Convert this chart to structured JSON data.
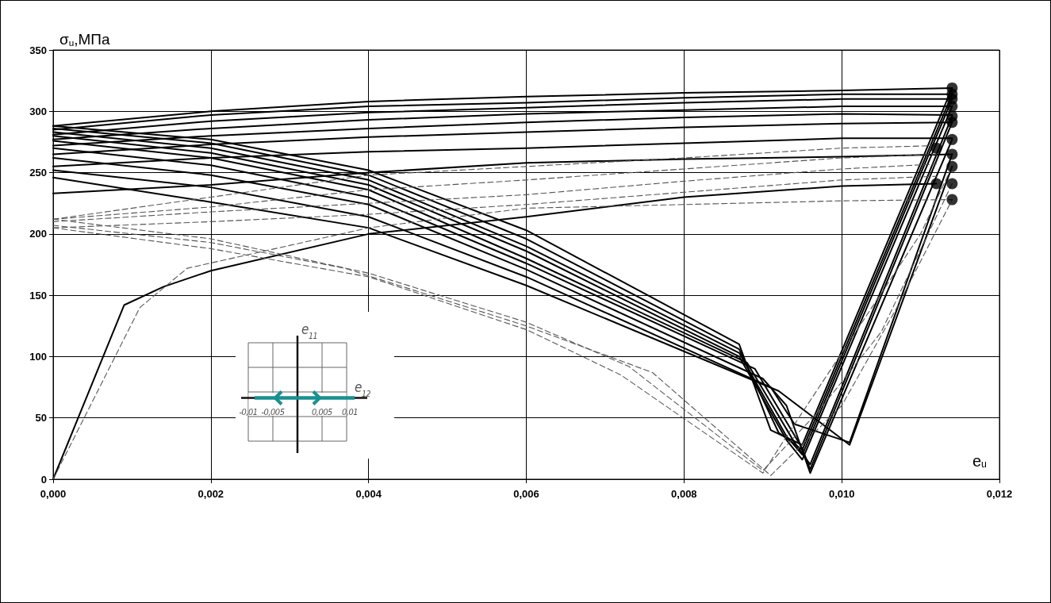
{
  "chart_data": {
    "type": "line",
    "xlabel": "e$_{u}$",
    "ylabel": "σ$_{u}$,МПа",
    "xlim": [
      0,
      0.012
    ],
    "ylim": [
      0,
      350
    ],
    "xticks": [
      {
        "value": 0,
        "label": "0,000"
      },
      {
        "value": 0.002,
        "label": "0,002"
      },
      {
        "value": 0.004,
        "label": "0,004"
      },
      {
        "value": 0.006,
        "label": "0,006"
      },
      {
        "value": 0.008,
        "label": "0,008"
      },
      {
        "value": 0.01,
        "label": "0,010"
      },
      {
        "value": 0.012,
        "label": "0,012"
      }
    ],
    "yticks": [
      0,
      50,
      100,
      150,
      200,
      250,
      300,
      350
    ],
    "grid": true,
    "marker": "none",
    "line_style": "solid",
    "annotations": [
      "e$_{11}$",
      "e$_{12}$",
      "-0,01",
      "-0,005",
      "0,005",
      "0,01"
    ],
    "series": [
      {
        "color": "#000000",
        "x": [
          0,
          0.0009,
          0.0014,
          0.002,
          0.004,
          0.006,
          0.008,
          0.01,
          0.0112
        ],
        "values": [
          0,
          142,
          157,
          170,
          200,
          214,
          230,
          239,
          241
        ]
      },
      {
        "color": "#000000",
        "x": [
          0,
          0.002,
          0.004,
          0.006,
          0.008,
          0.01,
          0.0114
        ],
        "values": [
          288,
          300,
          308,
          312,
          315,
          317,
          319
        ]
      },
      {
        "color": "#000000",
        "x": [
          0,
          0.002,
          0.004,
          0.006,
          0.008,
          0.01,
          0.0114
        ],
        "values": [
          285,
          297,
          304,
          307,
          311,
          314,
          314
        ]
      },
      {
        "color": "#000000",
        "x": [
          0,
          0.002,
          0.004,
          0.006,
          0.008,
          0.01,
          0.0114
        ],
        "values": [
          281,
          292,
          299,
          303,
          307,
          310,
          310
        ]
      },
      {
        "color": "#000000",
        "x": [
          0,
          0.002,
          0.004,
          0.006,
          0.008,
          0.01,
          0.0114
        ],
        "values": [
          277,
          286,
          293,
          298,
          301,
          304,
          304
        ]
      },
      {
        "color": "#000000",
        "x": [
          0,
          0.002,
          0.004,
          0.006,
          0.008,
          0.01,
          0.0114
        ],
        "values": [
          272,
          280,
          286,
          291,
          295,
          298,
          297
        ]
      },
      {
        "color": "#000000",
        "x": [
          0,
          0.002,
          0.004,
          0.006,
          0.008,
          0.01,
          0.0114
        ],
        "values": [
          265,
          273,
          279,
          283,
          287,
          290,
          291
        ]
      },
      {
        "color": "#000000",
        "x": [
          0,
          0.002,
          0.004,
          0.006,
          0.008,
          0.01,
          0.0114
        ],
        "values": [
          255,
          262,
          267,
          270,
          274,
          278,
          278
        ]
      },
      {
        "color": "#000000",
        "x": [
          0,
          0.002,
          0.004,
          0.006,
          0.008,
          0.01,
          0.0114
        ],
        "values": [
          233,
          240,
          250,
          258,
          261,
          263,
          265
        ]
      },
      {
        "color": "#000000",
        "x": [
          0,
          0.002,
          0.004,
          0.006,
          0.0087,
          0.0091,
          0.0095,
          0.0114
        ],
        "values": [
          288,
          277,
          252,
          203,
          110,
          40,
          28,
          319
        ]
      },
      {
        "color": "#000000",
        "x": [
          0,
          0.002,
          0.004,
          0.006,
          0.0087,
          0.0092,
          0.0095,
          0.0114
        ],
        "values": [
          286,
          274,
          248,
          196,
          106,
          38,
          24,
          314
        ]
      },
      {
        "color": "#000000",
        "x": [
          0,
          0.002,
          0.004,
          0.006,
          0.0087,
          0.0093,
          0.0095,
          0.0114
        ],
        "values": [
          283,
          270,
          244,
          190,
          103,
          35,
          20,
          310
        ]
      },
      {
        "color": "#000000",
        "x": [
          0,
          0.002,
          0.004,
          0.006,
          0.0087,
          0.0093,
          0.0095,
          0.0114
        ],
        "values": [
          280,
          266,
          240,
          186,
          100,
          32,
          16,
          304
        ]
      },
      {
        "color": "#000000",
        "x": [
          0,
          0.002,
          0.004,
          0.006,
          0.0088,
          0.0094,
          0.0096,
          0.0114
        ],
        "values": [
          276,
          262,
          236,
          180,
          95,
          30,
          12,
          296
        ]
      },
      {
        "color": "#000000",
        "x": [
          0,
          0.002,
          0.004,
          0.006,
          0.0089,
          0.0095,
          0.0096,
          0.0114
        ],
        "values": [
          270,
          256,
          230,
          176,
          90,
          25,
          8,
          291
        ]
      },
      {
        "color": "#000000",
        "x": [
          0,
          0.002,
          0.004,
          0.006,
          0.009,
          0.0093,
          0.0096,
          0.0114
        ],
        "values": [
          262,
          248,
          224,
          171,
          82,
          60,
          5,
          277
        ]
      },
      {
        "color": "#000000",
        "x": [
          0,
          0.002,
          0.004,
          0.006,
          0.0091,
          0.0094,
          0.0101,
          0.0114
        ],
        "values": [
          252,
          238,
          214,
          165,
          75,
          45,
          30,
          265
        ]
      },
      {
        "color": "#000000",
        "x": [
          0,
          0.002,
          0.004,
          0.006,
          0.0092,
          0.0101,
          0.0114
        ],
        "values": [
          246,
          226,
          205,
          158,
          72,
          28,
          255
        ]
      },
      {
        "color": "#555555",
        "line_style": "dashed",
        "x": [
          0,
          0.0011,
          0.0017,
          0.004,
          0.006,
          0.01,
          0.0114
        ],
        "values": [
          0,
          140,
          172,
          205,
          221,
          227,
          228
        ]
      },
      {
        "color": "#555555",
        "line_style": "dashed",
        "x": [
          0,
          0.002,
          0.004,
          0.006,
          0.008,
          0.01,
          0.0112
        ],
        "values": [
          212,
          230,
          248,
          255,
          262,
          270,
          272
        ]
      },
      {
        "color": "#555555",
        "line_style": "dashed",
        "x": [
          0,
          0.002,
          0.004,
          0.006,
          0.008,
          0.01,
          0.0112
        ],
        "values": [
          212,
          222,
          236,
          244,
          253,
          262,
          265
        ]
      },
      {
        "color": "#555555",
        "line_style": "dashed",
        "x": [
          0,
          0.002,
          0.004,
          0.006,
          0.008,
          0.01,
          0.0112
        ],
        "values": [
          210,
          218,
          225,
          232,
          243,
          253,
          257
        ]
      },
      {
        "color": "#555555",
        "line_style": "dashed",
        "x": [
          0,
          0.002,
          0.004,
          0.006,
          0.008,
          0.01,
          0.0112
        ],
        "values": [
          205,
          210,
          216,
          224,
          234,
          244,
          247
        ]
      },
      {
        "color": "#555555",
        "line_style": "dashed",
        "x": [
          0,
          0.002,
          0.004,
          0.006,
          0.0073,
          0.009,
          0.0097,
          0.0105,
          0.0114
        ],
        "values": [
          212,
          196,
          168,
          128,
          92,
          7,
          55,
          120,
          241
        ]
      },
      {
        "color": "#555555",
        "line_style": "dashed",
        "x": [
          0,
          0.002,
          0.0037,
          0.006,
          0.0076,
          0.0091,
          0.01,
          0.0107,
          0.0114
        ],
        "values": [
          207,
          193,
          172,
          125,
          87,
          3,
          60,
          140,
          228
        ]
      },
      {
        "color": "#555555",
        "line_style": "dashed",
        "x": [
          0,
          0.002,
          0.004,
          0.006,
          0.0072,
          0.009,
          0.0093,
          0.011,
          0.0114
        ],
        "values": [
          205,
          188,
          165,
          122,
          85,
          5,
          35,
          200,
          255
        ]
      },
      {
        "type": "scatter",
        "marker": "circle",
        "color": "#000000",
        "x": [
          0.0114,
          0.0114,
          0.0114,
          0.0114,
          0.0114,
          0.0114,
          0.0114,
          0.0112,
          0.0114,
          0.0114,
          0.0112,
          0.0114,
          0.0114
        ],
        "values": [
          319,
          314,
          310,
          304,
          296,
          291,
          277,
          270,
          265,
          255,
          241,
          241,
          228
        ]
      }
    ]
  }
}
